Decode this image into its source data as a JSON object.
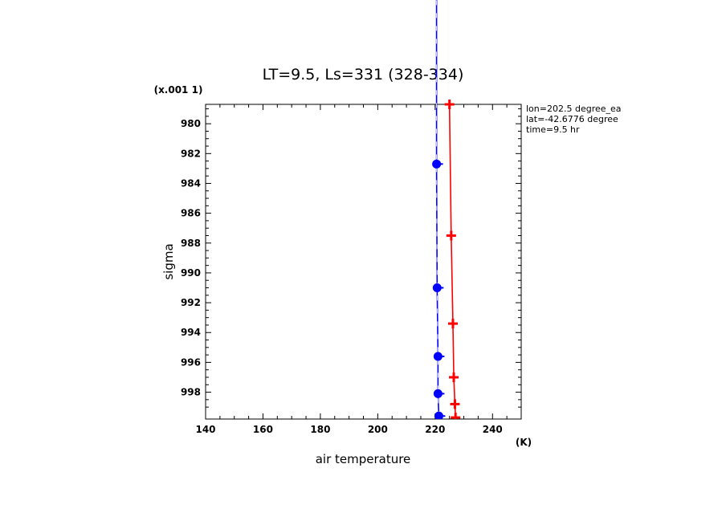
{
  "chart_data": {
    "type": "line",
    "title": "LT=9.5, Ls=331 (328-334)",
    "xlabel": "air temperature",
    "xunit": "(K)",
    "ylabel": "sigma",
    "yscale_label": "(x.001 1)",
    "xlim": [
      140,
      250
    ],
    "ylim": [
      978.7,
      999.8
    ],
    "y_inverted": true,
    "x_ticks": [
      140,
      160,
      180,
      200,
      220,
      240
    ],
    "x_tick_labels": [
      "140",
      "160",
      "180",
      "200",
      "220",
      "240"
    ],
    "y_ticks": [
      980,
      982,
      984,
      986,
      988,
      990,
      992,
      994,
      996,
      998
    ],
    "y_tick_labels": [
      "980",
      "982",
      "984",
      "986",
      "988",
      "990",
      "992",
      "994",
      "996",
      "998"
    ],
    "annotations": [
      "lon=202.5 degree_ea",
      "lat=-42.6776 degree",
      "time=9.5 hr"
    ],
    "series": [
      {
        "color": "#0000ff",
        "marker": "circle",
        "x": [
          220.5,
          220.5,
          220.7,
          221.0,
          221.0,
          221.3
        ],
        "y": [
          970,
          982.7,
          991,
          995.6,
          998.1,
          999.6
        ]
      },
      {
        "color": "#ff0000",
        "marker": "plus",
        "x": [
          225.0,
          225.6,
          226.2,
          226.5,
          226.9,
          227.1
        ],
        "y": [
          978.7,
          987.5,
          993.4,
          997.0,
          998.8,
          999.7
        ]
      }
    ]
  }
}
